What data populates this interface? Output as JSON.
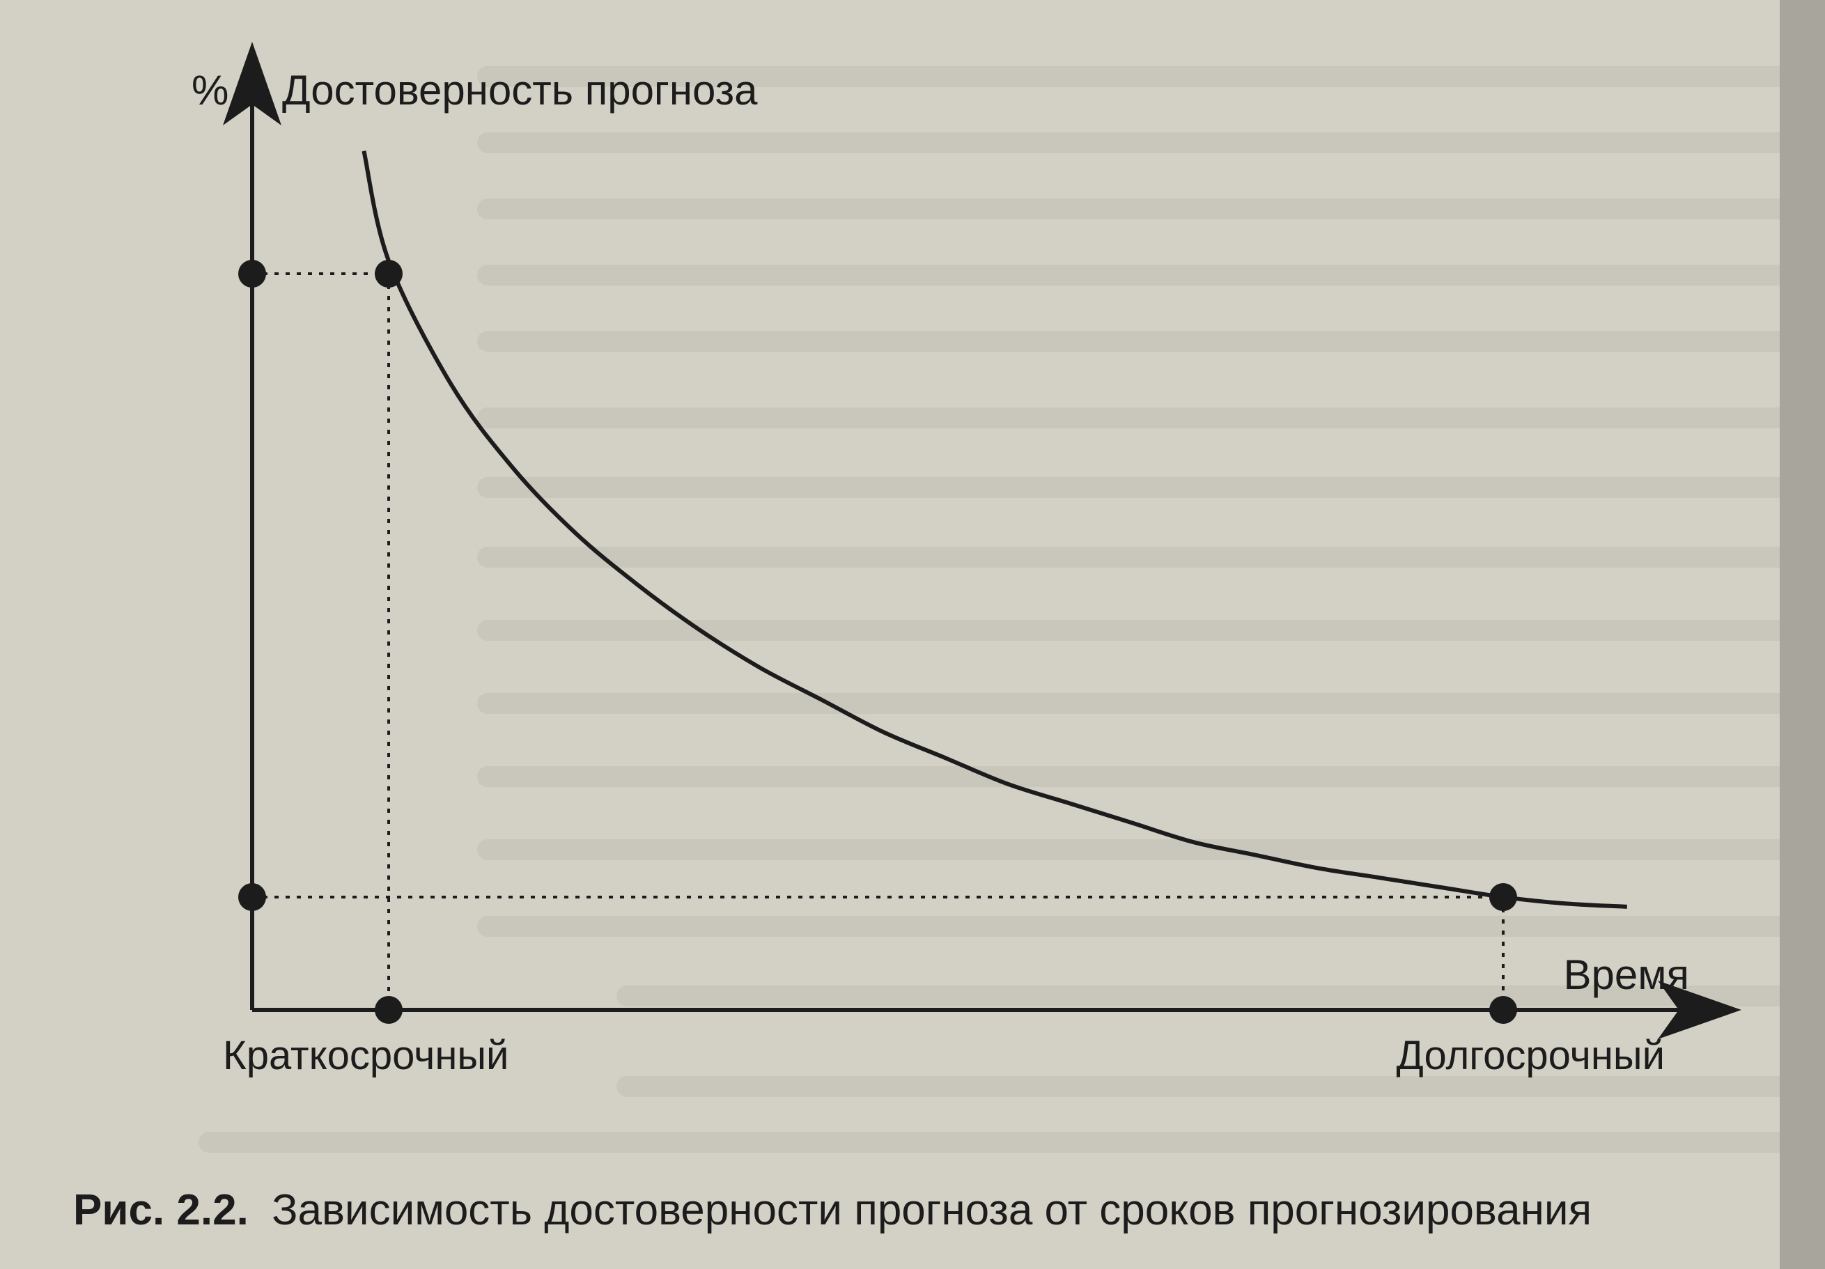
{
  "chart_data": {
    "type": "line",
    "ylabel": "Достоверность прогноза",
    "y_unit": "%",
    "xlabel": "Время",
    "x_categories": [
      "Краткосрочный",
      "Долгосрочный"
    ],
    "series": [
      {
        "curve": "decreasing",
        "x": [
          0.08,
          0.1,
          0.15,
          0.2,
          0.25,
          0.3,
          0.35,
          0.4,
          0.45,
          0.5,
          0.55,
          0.6,
          0.65,
          0.7,
          0.75,
          0.8,
          0.85,
          0.9,
          0.95,
          1.0,
          1.05,
          1.1
        ],
        "values": [
          1.19,
          1.02,
          0.83,
          0.7,
          0.6,
          0.52,
          0.45,
          0.39,
          0.34,
          0.29,
          0.25,
          0.21,
          0.18,
          0.15,
          0.12,
          0.1,
          0.08,
          0.065,
          0.05,
          0.035,
          0.025,
          0.02
        ]
      }
    ],
    "markers": [
      {
        "label": "Краткосрочный",
        "x": 0.1,
        "y": 1.0
      },
      {
        "label": "Долгосрочный",
        "x": 1.0,
        "y": 0.035
      }
    ],
    "xlim": [
      0,
      1.15
    ],
    "ylim": [
      0,
      1.3
    ],
    "grid": false,
    "colors": {
      "line": "#1c1c1c",
      "background": "#d3d0c5",
      "guides": "#1c1c1c"
    }
  },
  "caption": {
    "number": "Рис. 2.2.",
    "text": "Зависимость достоверности прогноза от сроков прогнозирования"
  }
}
